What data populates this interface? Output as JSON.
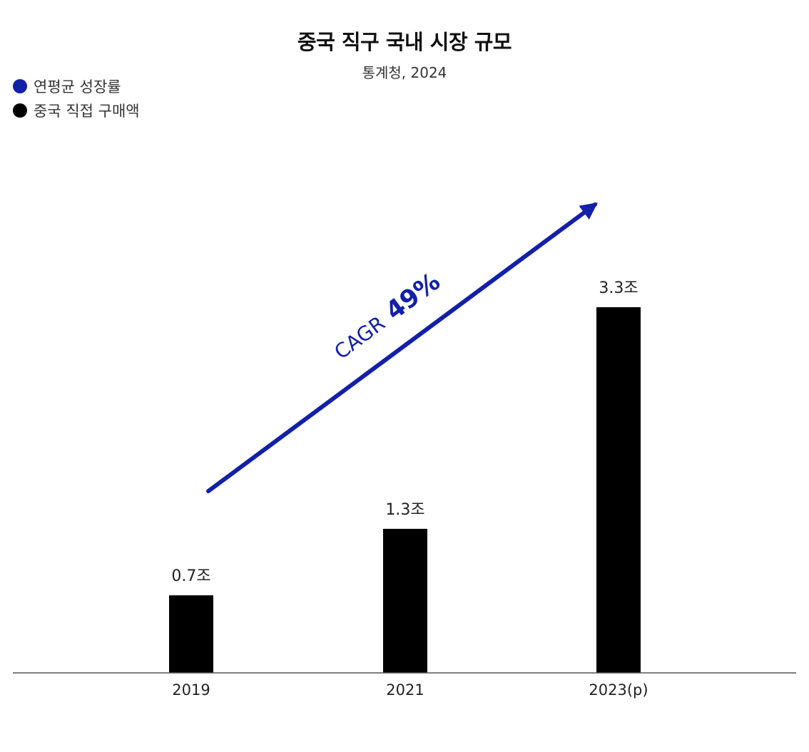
{
  "chart_data": {
    "type": "bar",
    "title": "중국 직구 국내 시장 규모",
    "subtitle": "통계청, 2024",
    "categories": [
      "2019",
      "2021",
      "2023(p)"
    ],
    "series": [
      {
        "name": "중국 직접 구매액",
        "values": [
          0.7,
          1.3,
          3.3
        ],
        "data_labels": [
          "0.7조",
          "1.3조",
          "3.3조"
        ]
      }
    ],
    "ylim": [
      0,
      3.3
    ],
    "grid": false,
    "legend": {
      "placement": "top-left",
      "entries": [
        {
          "name": "연평균 성장률",
          "color": "#1320A8"
        },
        {
          "name": "중국 직접 구매액",
          "color": "#000000"
        }
      ]
    },
    "annotation": {
      "type": "arrow",
      "label_prefix": "CAGR",
      "label_value": "49%",
      "color": "#1320A8"
    },
    "colors": {
      "bar": "#000000",
      "accent": "#1320A8",
      "axis": "#555555"
    }
  }
}
